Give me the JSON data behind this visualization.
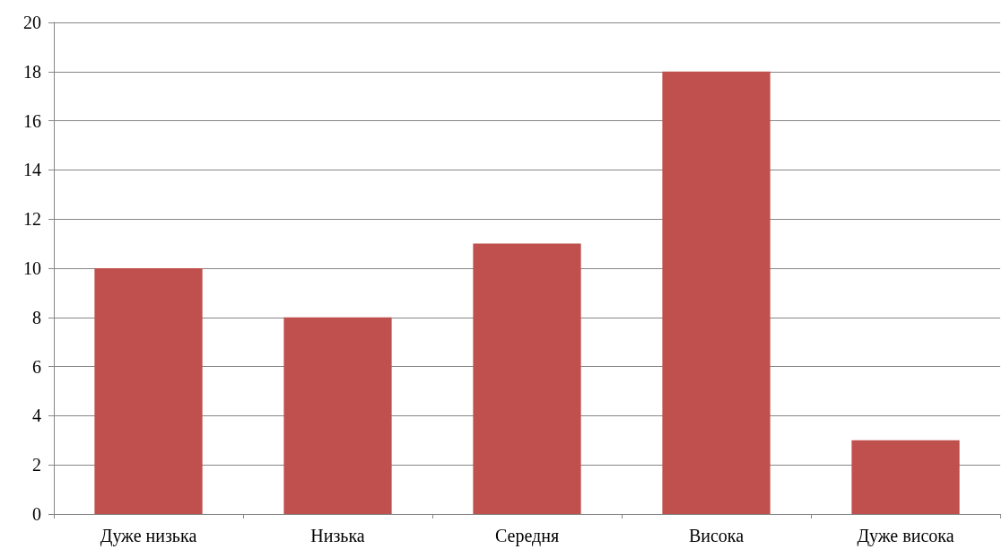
{
  "chart_data": {
    "type": "bar",
    "categories": [
      "Дуже низька",
      "Низька",
      "Середня",
      "Висока",
      "Дуже висока"
    ],
    "values": [
      10,
      8,
      11,
      18,
      3
    ],
    "color": "#c0504d",
    "ylim": [
      0,
      20
    ],
    "yticks": [
      0,
      2,
      4,
      6,
      8,
      10,
      12,
      14,
      16,
      18,
      20
    ],
    "grid": "y"
  }
}
